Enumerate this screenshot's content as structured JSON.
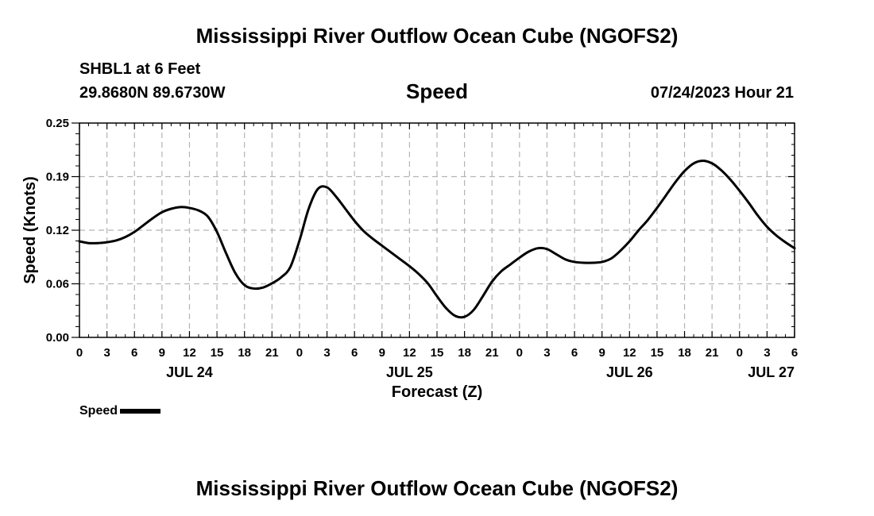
{
  "chart_data": {
    "type": "line",
    "title": "Mississippi River Outflow Ocean Cube (NGOFS2)",
    "footer_title": "Mississippi River Outflow Ocean Cube (NGOFS2)",
    "subtitle": "Speed",
    "station": "SHBL1 at 6 Feet",
    "coordinates": "29.8680N  89.6730W",
    "datetime": "07/24/2023 Hour 21",
    "xlabel": "Forecast (Z)",
    "ylabel": "Speed (Knots)",
    "ylim": [
      0,
      0.25
    ],
    "xlim": [
      0,
      78
    ],
    "y_ticks": [
      {
        "value": 0.0,
        "label": "0.00"
      },
      {
        "value": 0.0625,
        "label": "0.06"
      },
      {
        "value": 0.125,
        "label": "0.12"
      },
      {
        "value": 0.1875,
        "label": "0.19"
      },
      {
        "value": 0.25,
        "label": "0.25"
      }
    ],
    "x_ticks": [
      {
        "hour": 0,
        "label": "0"
      },
      {
        "hour": 3,
        "label": "3"
      },
      {
        "hour": 6,
        "label": "6"
      },
      {
        "hour": 9,
        "label": "9"
      },
      {
        "hour": 12,
        "label": "12"
      },
      {
        "hour": 15,
        "label": "15"
      },
      {
        "hour": 18,
        "label": "18"
      },
      {
        "hour": 21,
        "label": "21"
      },
      {
        "hour": 24,
        "label": "0"
      },
      {
        "hour": 27,
        "label": "3"
      },
      {
        "hour": 30,
        "label": "6"
      },
      {
        "hour": 33,
        "label": "9"
      },
      {
        "hour": 36,
        "label": "12"
      },
      {
        "hour": 39,
        "label": "15"
      },
      {
        "hour": 42,
        "label": "18"
      },
      {
        "hour": 45,
        "label": "21"
      },
      {
        "hour": 48,
        "label": "0"
      },
      {
        "hour": 51,
        "label": "3"
      },
      {
        "hour": 54,
        "label": "6"
      },
      {
        "hour": 57,
        "label": "9"
      },
      {
        "hour": 60,
        "label": "12"
      },
      {
        "hour": 63,
        "label": "15"
      },
      {
        "hour": 66,
        "label": "18"
      },
      {
        "hour": 69,
        "label": "21"
      },
      {
        "hour": 72,
        "label": "0"
      },
      {
        "hour": 75,
        "label": "3"
      },
      {
        "hour": 78,
        "label": "6"
      }
    ],
    "date_labels": [
      {
        "hour": 12,
        "label": "JUL 24"
      },
      {
        "hour": 36,
        "label": "JUL 25"
      },
      {
        "hour": 60,
        "label": "JUL 26"
      },
      {
        "hour": 78,
        "label": "JUL 27"
      }
    ],
    "grid": true,
    "series": [
      {
        "name": "Speed",
        "color": "#000000",
        "x": [
          0,
          1,
          2,
          3,
          4,
          5,
          6,
          7,
          8,
          9,
          10,
          11,
          12,
          13,
          14,
          15,
          16,
          17,
          18,
          19,
          20,
          21,
          22,
          23,
          24,
          25,
          26,
          27,
          28,
          29,
          30,
          31,
          32,
          33,
          34,
          35,
          36,
          37,
          38,
          39,
          40,
          41,
          42,
          43,
          44,
          45,
          46,
          47,
          48,
          49,
          50,
          51,
          52,
          53,
          54,
          55,
          56,
          57,
          58,
          59,
          60,
          61,
          62,
          63,
          64,
          65,
          66,
          67,
          68,
          69,
          70,
          71,
          72,
          73,
          74,
          75,
          76,
          77,
          78
        ],
        "values": [
          0.112,
          0.11,
          0.11,
          0.111,
          0.113,
          0.117,
          0.123,
          0.131,
          0.139,
          0.146,
          0.15,
          0.152,
          0.151,
          0.148,
          0.141,
          0.123,
          0.098,
          0.075,
          0.061,
          0.057,
          0.058,
          0.063,
          0.07,
          0.082,
          0.113,
          0.15,
          0.173,
          0.175,
          0.164,
          0.15,
          0.136,
          0.124,
          0.115,
          0.107,
          0.099,
          0.091,
          0.083,
          0.074,
          0.063,
          0.048,
          0.034,
          0.025,
          0.024,
          0.032,
          0.048,
          0.065,
          0.077,
          0.085,
          0.093,
          0.1,
          0.104,
          0.103,
          0.097,
          0.091,
          0.088,
          0.087,
          0.087,
          0.088,
          0.092,
          0.101,
          0.112,
          0.125,
          0.137,
          0.151,
          0.166,
          0.181,
          0.194,
          0.203,
          0.206,
          0.203,
          0.195,
          0.184,
          0.171,
          0.157,
          0.142,
          0.129,
          0.119,
          0.111,
          0.104
        ]
      }
    ]
  },
  "legend": {
    "label": "Speed"
  }
}
